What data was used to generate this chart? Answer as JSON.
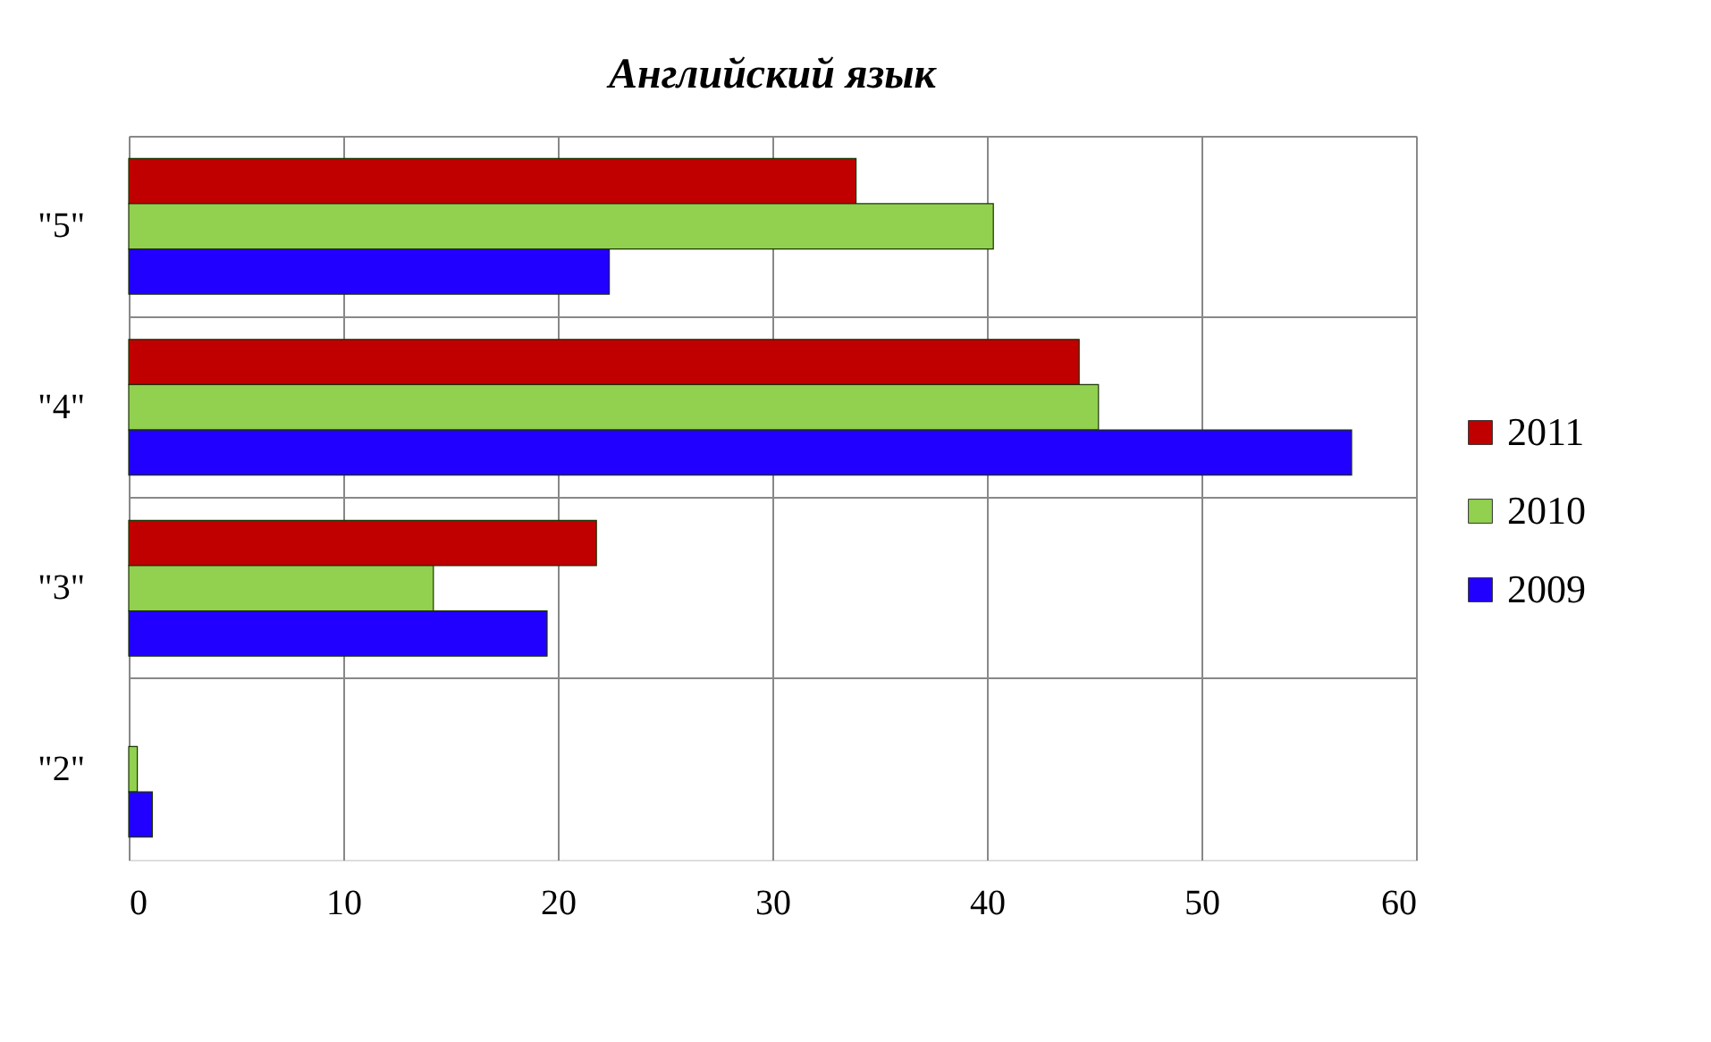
{
  "chart_data": {
    "type": "bar",
    "orientation": "horizontal",
    "title": "Английский язык",
    "categories": [
      "\"5\"",
      "\"4\"",
      "\"3\"",
      "\"2\""
    ],
    "series": [
      {
        "name": "2011",
        "color": "#c00000",
        "values": [
          33.9,
          44.3,
          21.8,
          null
        ]
      },
      {
        "name": "2010",
        "color": "#92d050",
        "values": [
          40.3,
          45.2,
          14.2,
          0.4
        ]
      },
      {
        "name": "2009",
        "color": "#2200ff",
        "values": [
          22.4,
          57.0,
          19.5,
          1.1
        ]
      }
    ],
    "xlim": [
      0,
      60
    ],
    "xticks": [
      0,
      10,
      20,
      30,
      40,
      50,
      60
    ],
    "grid": true,
    "legend": "right"
  }
}
